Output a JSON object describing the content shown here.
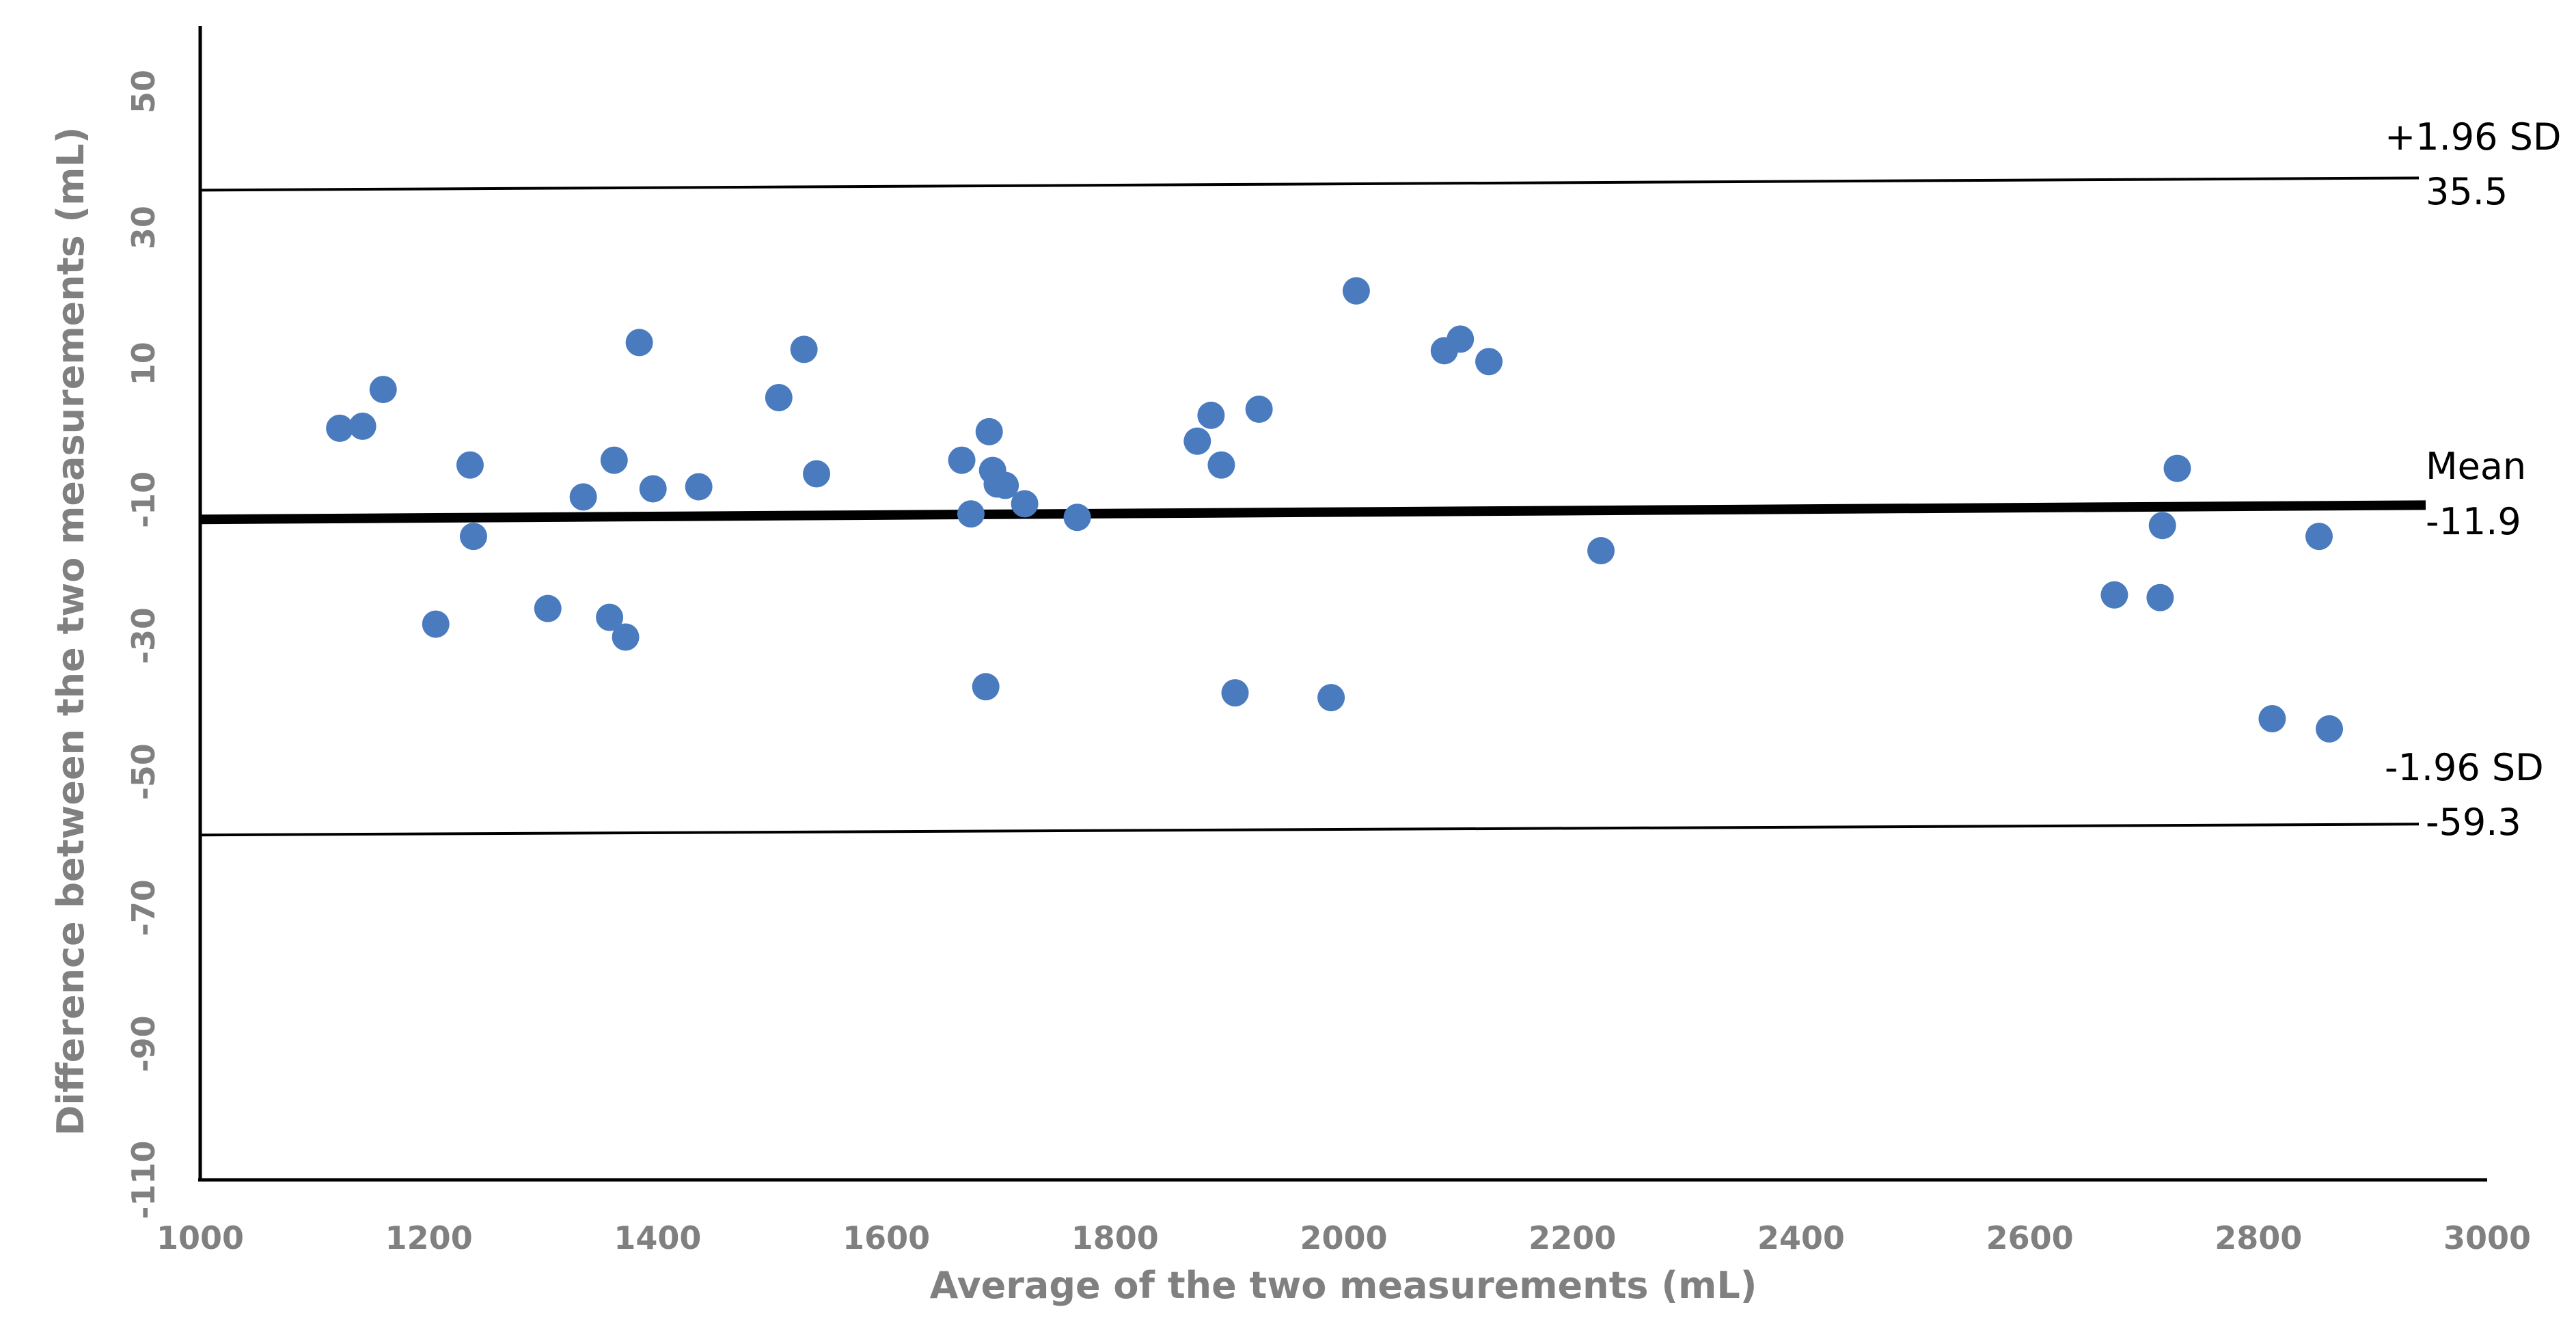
{
  "chart_data": {
    "type": "scatter",
    "xlabel": "Average of the two measurements (mL)",
    "ylabel": "Difference between the two measurements (mL)",
    "xlim": [
      1000,
      3000
    ],
    "ylim": [
      -110,
      60
    ],
    "x_ticks": [
      "1000",
      "1200",
      "1400",
      "1600",
      "1800",
      "2000",
      "2200",
      "2400",
      "2600",
      "2800",
      "3000"
    ],
    "y_ticks": [
      "-110",
      "-90",
      "-70",
      "-50",
      "-30",
      "-10",
      "10",
      "30",
      "50"
    ],
    "grid": false,
    "legend": "none",
    "point_color": "#4a7bbf",
    "line_color": "#000000",
    "reference_lines": [
      {
        "name": "+1.96 SD",
        "value_label": "35.5",
        "y_start": 35.5,
        "y_end": 37.3
      },
      {
        "name": "Mean",
        "value_label": "-11.9",
        "y_start": -12.9,
        "y_end": -10.8
      },
      {
        "name": "-1.96 SD",
        "value_label": "-59.3",
        "y_start": -59.3,
        "y_end": -57.7
      }
    ],
    "points": [
      {
        "x": 1122,
        "y": 0.5
      },
      {
        "x": 1142,
        "y": 0.8
      },
      {
        "x": 1160,
        "y": 6.2
      },
      {
        "x": 1236,
        "y": -4.9
      },
      {
        "x": 1239,
        "y": -15.4
      },
      {
        "x": 1206,
        "y": -28.3
      },
      {
        "x": 1304,
        "y": -26.0
      },
      {
        "x": 1335,
        "y": -9.6
      },
      {
        "x": 1358,
        "y": -27.3
      },
      {
        "x": 1362,
        "y": -4.2
      },
      {
        "x": 1372,
        "y": -30.2
      },
      {
        "x": 1384,
        "y": 13.1
      },
      {
        "x": 1396,
        "y": -8.4
      },
      {
        "x": 1436,
        "y": -8.1
      },
      {
        "x": 1506,
        "y": 5.0
      },
      {
        "x": 1528,
        "y": 12.1
      },
      {
        "x": 1539,
        "y": -6.2
      },
      {
        "x": 1666,
        "y": -4.2
      },
      {
        "x": 1674,
        "y": -12.1
      },
      {
        "x": 1687,
        "y": -37.5
      },
      {
        "x": 1690,
        "y": 0.0
      },
      {
        "x": 1693,
        "y": -5.7
      },
      {
        "x": 1697,
        "y": -7.7
      },
      {
        "x": 1704,
        "y": -7.9
      },
      {
        "x": 1721,
        "y": -10.6
      },
      {
        "x": 1767,
        "y": -12.6
      },
      {
        "x": 1872,
        "y": -1.4
      },
      {
        "x": 1884,
        "y": 2.4
      },
      {
        "x": 1893,
        "y": -4.9
      },
      {
        "x": 1905,
        "y": -38.4
      },
      {
        "x": 1926,
        "y": 3.3
      },
      {
        "x": 1989,
        "y": -39.1
      },
      {
        "x": 2011,
        "y": 20.7
      },
      {
        "x": 2088,
        "y": 11.9
      },
      {
        "x": 2102,
        "y": 13.6
      },
      {
        "x": 2127,
        "y": 10.3
      },
      {
        "x": 2225,
        "y": -17.5
      },
      {
        "x": 2674,
        "y": -24.0
      },
      {
        "x": 2714,
        "y": -24.4
      },
      {
        "x": 2716,
        "y": -13.8
      },
      {
        "x": 2729,
        "y": -5.4
      },
      {
        "x": 2812,
        "y": -42.2
      },
      {
        "x": 2853,
        "y": -15.4
      },
      {
        "x": 2862,
        "y": -43.7
      }
    ]
  }
}
